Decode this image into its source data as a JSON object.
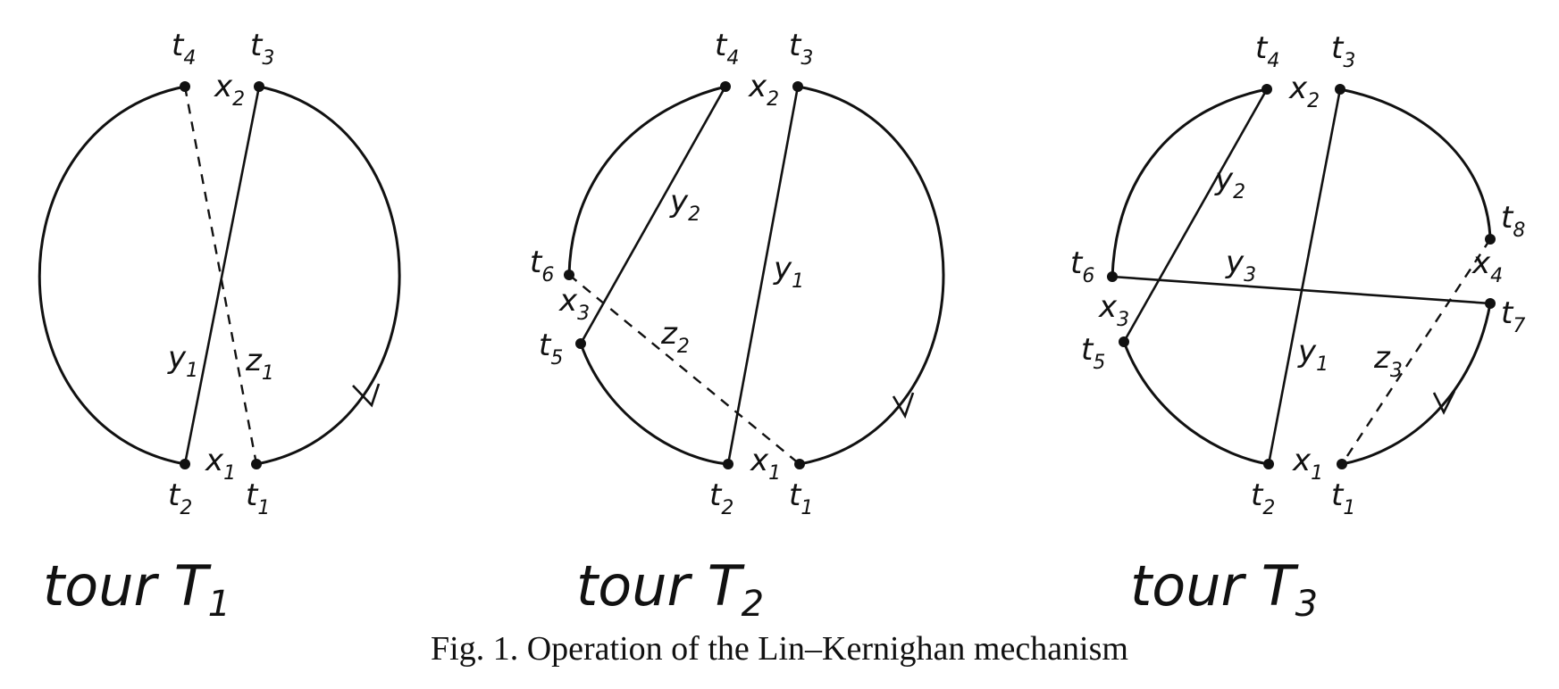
{
  "diagrams": [
    {
      "tour_label": "tour T",
      "tour_sub": "1",
      "nodes": [
        {
          "letter": "t",
          "sub": "4"
        },
        {
          "letter": "t",
          "sub": "3"
        },
        {
          "letter": "t",
          "sub": "2"
        },
        {
          "letter": "t",
          "sub": "1"
        }
      ],
      "edges": [
        {
          "letter": "x",
          "sub": "2"
        },
        {
          "letter": "x",
          "sub": "1"
        },
        {
          "letter": "y",
          "sub": "1"
        },
        {
          "letter": "z",
          "sub": "1"
        }
      ]
    },
    {
      "tour_label": "tour T",
      "tour_sub": "2",
      "nodes": [
        {
          "letter": "t",
          "sub": "4"
        },
        {
          "letter": "t",
          "sub": "3"
        },
        {
          "letter": "t",
          "sub": "6"
        },
        {
          "letter": "t",
          "sub": "5"
        },
        {
          "letter": "t",
          "sub": "2"
        },
        {
          "letter": "t",
          "sub": "1"
        }
      ],
      "edges": [
        {
          "letter": "x",
          "sub": "2"
        },
        {
          "letter": "x",
          "sub": "3"
        },
        {
          "letter": "x",
          "sub": "1"
        },
        {
          "letter": "y",
          "sub": "2"
        },
        {
          "letter": "y",
          "sub": "1"
        },
        {
          "letter": "z",
          "sub": "2"
        }
      ]
    },
    {
      "tour_label": "tour T",
      "tour_sub": "3",
      "nodes": [
        {
          "letter": "t",
          "sub": "4"
        },
        {
          "letter": "t",
          "sub": "3"
        },
        {
          "letter": "t",
          "sub": "8"
        },
        {
          "letter": "t",
          "sub": "6"
        },
        {
          "letter": "t",
          "sub": "7"
        },
        {
          "letter": "t",
          "sub": "5"
        },
        {
          "letter": "t",
          "sub": "2"
        },
        {
          "letter": "t",
          "sub": "1"
        }
      ],
      "edges": [
        {
          "letter": "x",
          "sub": "2"
        },
        {
          "letter": "x",
          "sub": "4"
        },
        {
          "letter": "x",
          "sub": "3"
        },
        {
          "letter": "x",
          "sub": "1"
        },
        {
          "letter": "y",
          "sub": "2"
        },
        {
          "letter": "y",
          "sub": "3"
        },
        {
          "letter": "y",
          "sub": "1"
        },
        {
          "letter": "z",
          "sub": "3"
        }
      ]
    }
  ],
  "caption": "Fig. 1. Operation of the Lin–Kernighan mechanism"
}
